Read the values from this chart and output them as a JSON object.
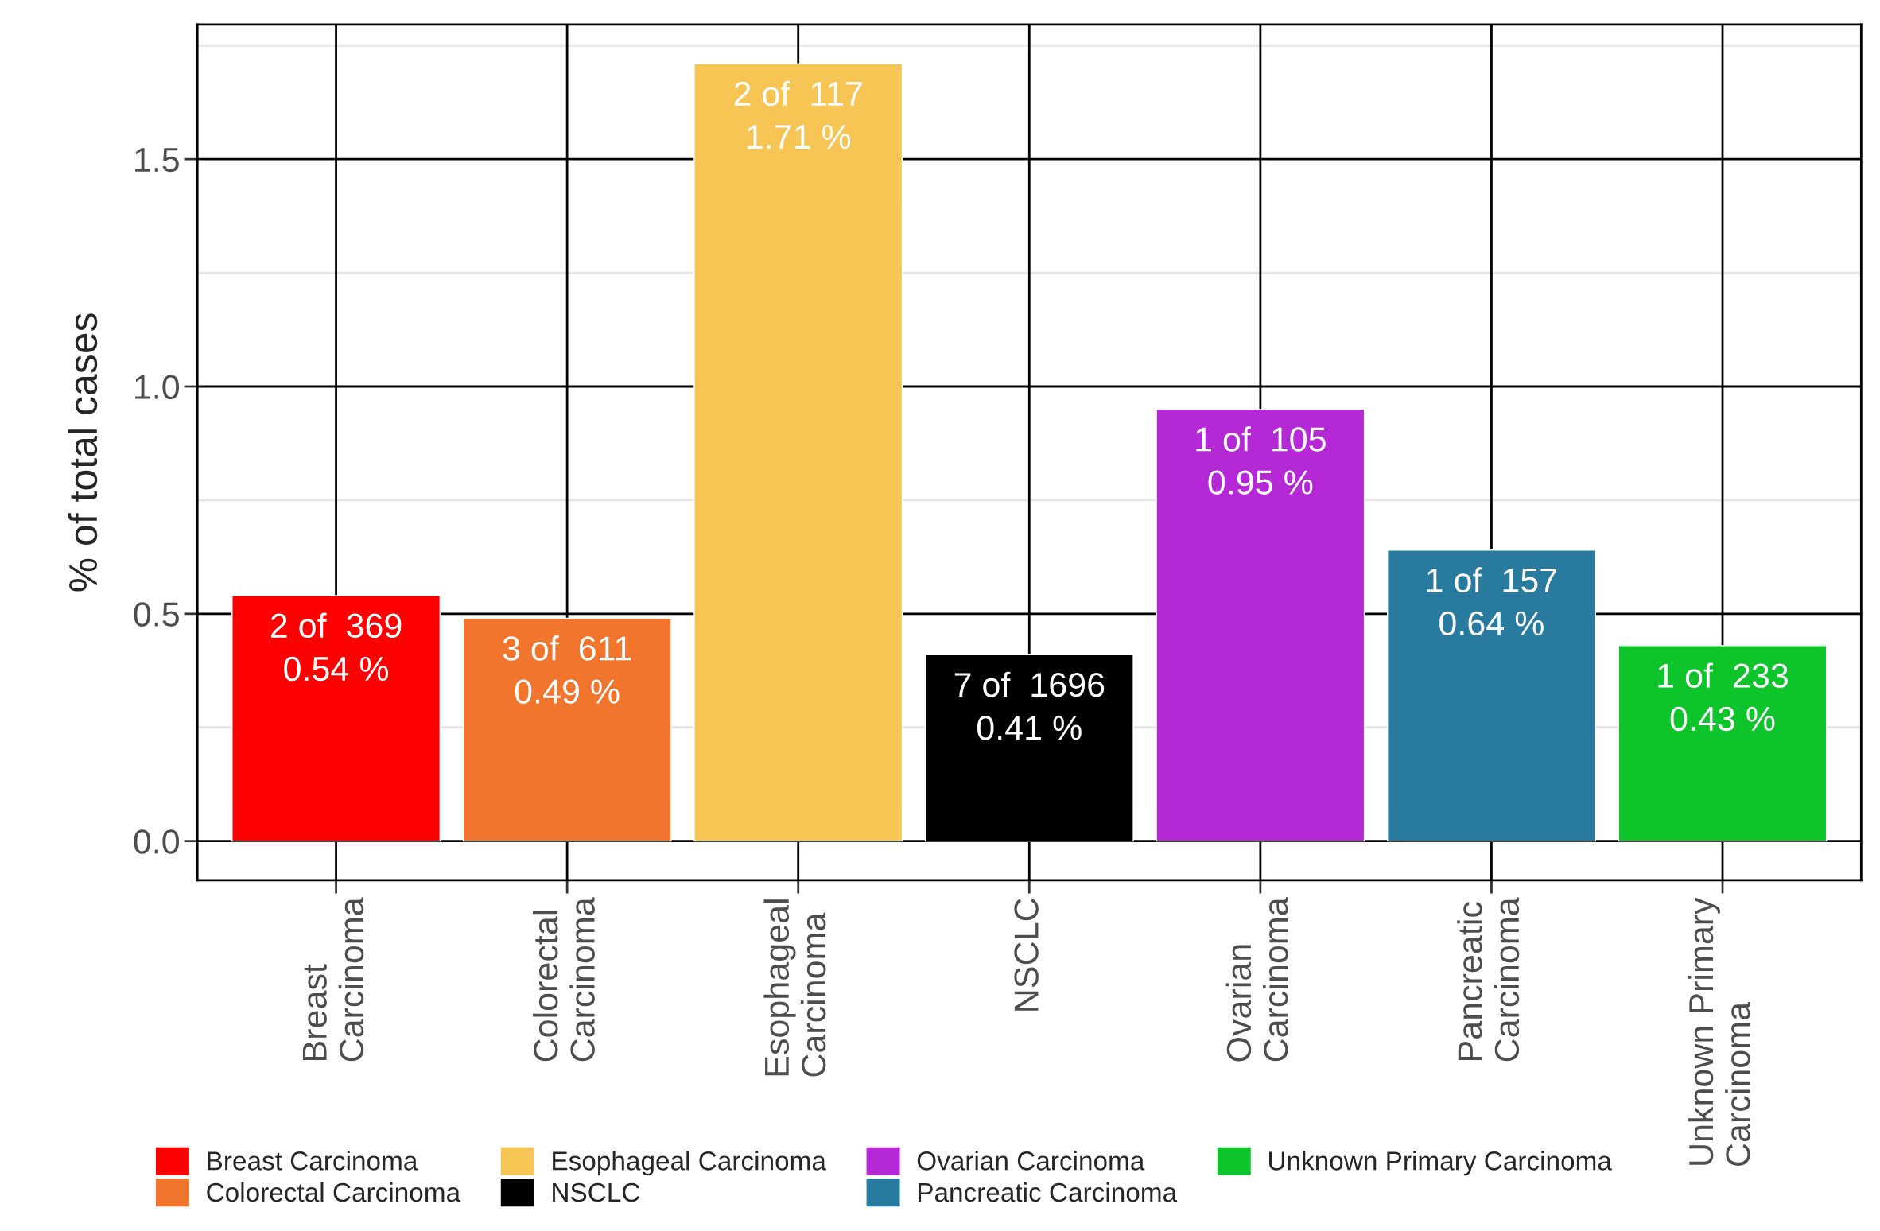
{
  "chart_data": {
    "type": "bar",
    "ylabel": "% of total cases",
    "categories": [
      "Breast\nCarcinoma",
      "Colorectal\nCarcinoma",
      "Esophageal\nCarcinoma",
      "NSCLC",
      "Ovarian\nCarcinoma",
      "Pancreatic\nCarcinoma",
      "Unknown Primary\nCarcinoma"
    ],
    "series": [
      {
        "name": "Breast Carcinoma",
        "color": "#ff0000",
        "values": [
          0.54,
          null,
          null,
          null,
          null,
          null,
          null
        ],
        "value_labels": [
          "2 of  369\n0.54 %",
          null,
          null,
          null,
          null,
          null,
          null
        ]
      },
      {
        "name": "Colorectal Carcinoma",
        "color": "#f2752e",
        "values": [
          null,
          0.49,
          null,
          null,
          null,
          null,
          null
        ],
        "value_labels": [
          null,
          "3 of  611\n0.49 %",
          null,
          null,
          null,
          null,
          null
        ]
      },
      {
        "name": "Esophageal Carcinoma",
        "color": "#f7c554",
        "values": [
          null,
          null,
          1.71,
          null,
          null,
          null,
          null
        ],
        "value_labels": [
          null,
          null,
          "2 of  117\n1.71 %",
          null,
          null,
          null,
          null
        ]
      },
      {
        "name": "NSCLC",
        "color": "#000000",
        "values": [
          null,
          null,
          null,
          0.41,
          null,
          null,
          null
        ],
        "value_labels": [
          null,
          null,
          null,
          "7 of  1696\n0.41 %",
          null,
          null,
          null
        ]
      },
      {
        "name": "Ovarian Carcinoma",
        "color": "#b428d6",
        "values": [
          null,
          null,
          null,
          null,
          0.95,
          null,
          null
        ],
        "value_labels": [
          null,
          null,
          null,
          null,
          "1 of  105\n0.95 %",
          null,
          null
        ]
      },
      {
        "name": "Pancreatic Carcinoma",
        "color": "#287a9e",
        "values": [
          null,
          null,
          null,
          null,
          null,
          0.64,
          null
        ],
        "value_labels": [
          null,
          null,
          null,
          null,
          null,
          "1 of  157\n0.64 %",
          null
        ]
      },
      {
        "name": "Unknown Primary Carcinoma",
        "color": "#0dc42a",
        "values": [
          null,
          null,
          null,
          null,
          null,
          null,
          0.43
        ],
        "value_labels": [
          null,
          null,
          null,
          null,
          null,
          null,
          "1 of  233\n0.43 %"
        ]
      }
    ],
    "ylim": [
      -0.086,
      1.796
    ],
    "yticks": [
      {
        "value": 0,
        "label": "0.0"
      },
      0.5,
      {
        "value": 1,
        "label": "1.0"
      },
      1.5
    ],
    "grid": true,
    "legend": "bottom"
  }
}
